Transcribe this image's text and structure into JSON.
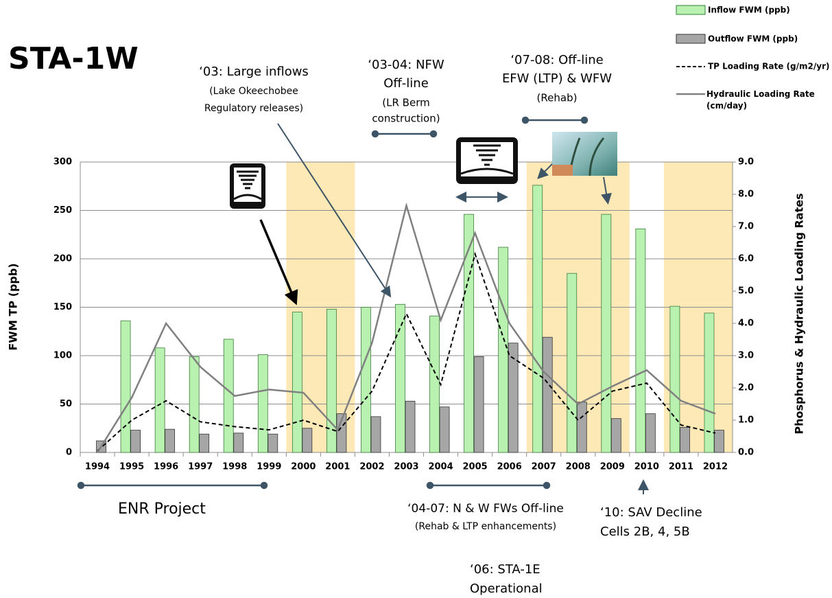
{
  "chart_data": {
    "type": "bar",
    "title": "STA-1W",
    "categories": [
      "1994",
      "1995",
      "1996",
      "1997",
      "1998",
      "1999",
      "2000",
      "2001",
      "2002",
      "2003",
      "2004",
      "2005",
      "2006",
      "2007",
      "2008",
      "2009",
      "2010",
      "2011",
      "2012"
    ],
    "series": [
      {
        "name": "Inflow FWM (ppb)",
        "color": "#b9f1b1",
        "values": [
          null,
          136,
          108,
          99,
          117,
          101,
          145,
          148,
          150,
          153,
          141,
          246,
          212,
          276,
          185,
          246,
          231,
          151,
          144
        ]
      },
      {
        "name": "Outflow FWM (ppb)",
        "color": "#a6a6a6",
        "values": [
          12,
          23,
          24,
          19,
          20,
          19,
          25,
          40,
          37,
          53,
          47,
          99,
          113,
          119,
          52,
          35,
          40,
          26,
          23
        ]
      },
      {
        "name": "TP Loading Rate (g/m2/yr)",
        "type": "line",
        "axis": "y2",
        "color": "#000000",
        "dashed": true,
        "values": [
          0.05,
          1.0,
          1.6,
          0.95,
          0.8,
          0.7,
          1.0,
          0.65,
          1.9,
          4.3,
          2.1,
          6.15,
          3.0,
          2.3,
          1.0,
          1.9,
          2.15,
          0.85,
          0.6
        ]
      },
      {
        "name": "Hydraulic Loading Rate (cm/day)",
        "type": "line",
        "axis": "y2",
        "color": "#808080",
        "values": [
          0.0,
          1.7,
          4.0,
          2.65,
          1.75,
          1.95,
          1.85,
          0.7,
          3.4,
          7.65,
          4.1,
          6.8,
          4.0,
          2.5,
          1.5,
          2.05,
          2.55,
          1.6,
          1.2
        ]
      }
    ],
    "shaded_periods": [
      [
        2000,
        2001
      ],
      [
        2007,
        2009
      ],
      [
        2011,
        2012
      ]
    ],
    "shade_color": "#fde9b6",
    "y_label": "FWM TP (ppb)",
    "y2_label": "Phosphorus & Hydraulic Loading Rates",
    "ylim": [
      0,
      300
    ],
    "yticks": [
      0,
      50,
      100,
      150,
      200,
      250,
      300
    ],
    "y2lim": [
      0,
      9
    ],
    "y2ticks": [
      {
        "value": 0,
        "label": "0.0"
      },
      {
        "value": 1,
        "label": "1.0"
      },
      {
        "value": 2,
        "label": "2.0"
      },
      {
        "value": 3,
        "label": "3.0"
      },
      {
        "value": 4,
        "label": "4.0"
      },
      {
        "value": 5,
        "label": "5.0"
      },
      {
        "value": 6,
        "label": "6.0"
      },
      {
        "value": 7,
        "label": "7.0"
      },
      {
        "value": 8,
        "label": "8.0"
      },
      {
        "value": 9,
        "label": "9.0"
      }
    ],
    "grid": true,
    "legend": "top-right",
    "annotations": [
      [
        "‘03: Large inflows",
        "(Lake Okeechobee",
        "Regulatory releases)"
      ],
      [
        "‘03-04: NFW",
        "Off-line",
        "(LR Berm",
        "construction)"
      ],
      [
        "‘07-08: Off-line",
        "EFW (LTP) & WFW",
        "(Rehab)"
      ],
      [
        "ENR Project"
      ],
      [
        "‘04-07: N & W FWs Off-line",
        "(Rehab & LTP enhancements)"
      ],
      [
        "‘10: SAV Decline",
        "Cells 2B, 4, 5B"
      ],
      [
        "‘06: STA-1E",
        "Operational"
      ]
    ]
  }
}
